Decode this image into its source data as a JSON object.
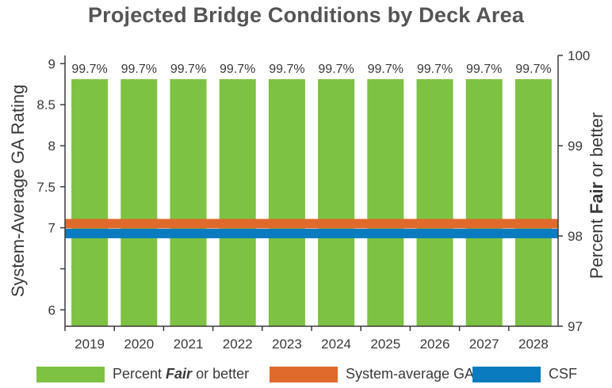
{
  "chart_data": {
    "type": "bar",
    "title": "Projected Bridge Conditions by Deck Area",
    "categories": [
      "2019",
      "2020",
      "2021",
      "2022",
      "2023",
      "2024",
      "2025",
      "2026",
      "2027",
      "2028"
    ],
    "series": [
      {
        "name": "Percent Fair or better",
        "type": "bar",
        "axis": "right",
        "color": "#7dc242",
        "values": [
          99.7,
          99.7,
          99.7,
          99.7,
          99.7,
          99.7,
          99.7,
          99.7,
          99.7,
          99.7
        ],
        "data_labels": [
          "99.7%",
          "99.7%",
          "99.7%",
          "99.7%",
          "99.7%",
          "99.7%",
          "99.7%",
          "99.7%",
          "99.7%",
          "99.7%"
        ]
      },
      {
        "name": "System-average GA",
        "type": "line",
        "axis": "left",
        "color": "#e06a2b",
        "values": [
          7.05,
          7.05,
          7.05,
          7.05,
          7.05,
          7.05,
          7.05,
          7.05,
          7.05,
          7.05
        ]
      },
      {
        "name": "CSF",
        "type": "line",
        "axis": "left",
        "color": "#0a7bbf",
        "values": [
          6.93,
          6.93,
          6.93,
          6.93,
          6.93,
          6.93,
          6.93,
          6.93,
          6.93,
          6.93
        ]
      }
    ],
    "y_left": {
      "label": "System-Average GA Rating",
      "ylim": [
        5.8,
        9.1
      ],
      "ticks": [
        9,
        8.5,
        8,
        7.5,
        7,
        6.5,
        6
      ],
      "tick_labels": [
        "9",
        "8.5",
        "8",
        "7.5",
        "7",
        "",
        "6"
      ]
    },
    "y_right": {
      "label_pre": "Percent ",
      "label_bold": "Fair",
      "label_post": " or better",
      "ylim": [
        97,
        100
      ],
      "ticks": [
        100,
        99,
        98,
        97
      ],
      "tick_labels": [
        "100",
        "99",
        "98",
        "97"
      ]
    },
    "legend": {
      "position": "bottom",
      "items": [
        {
          "pre": "Percent ",
          "bold": "Fair",
          "post": " or better",
          "color": "#7dc242"
        },
        {
          "pre": "System-average GA",
          "bold": "",
          "post": "",
          "color": "#e06a2b"
        },
        {
          "pre": "CSF",
          "bold": "",
          "post": "",
          "color": "#0a7bbf"
        }
      ]
    },
    "grid": false
  }
}
